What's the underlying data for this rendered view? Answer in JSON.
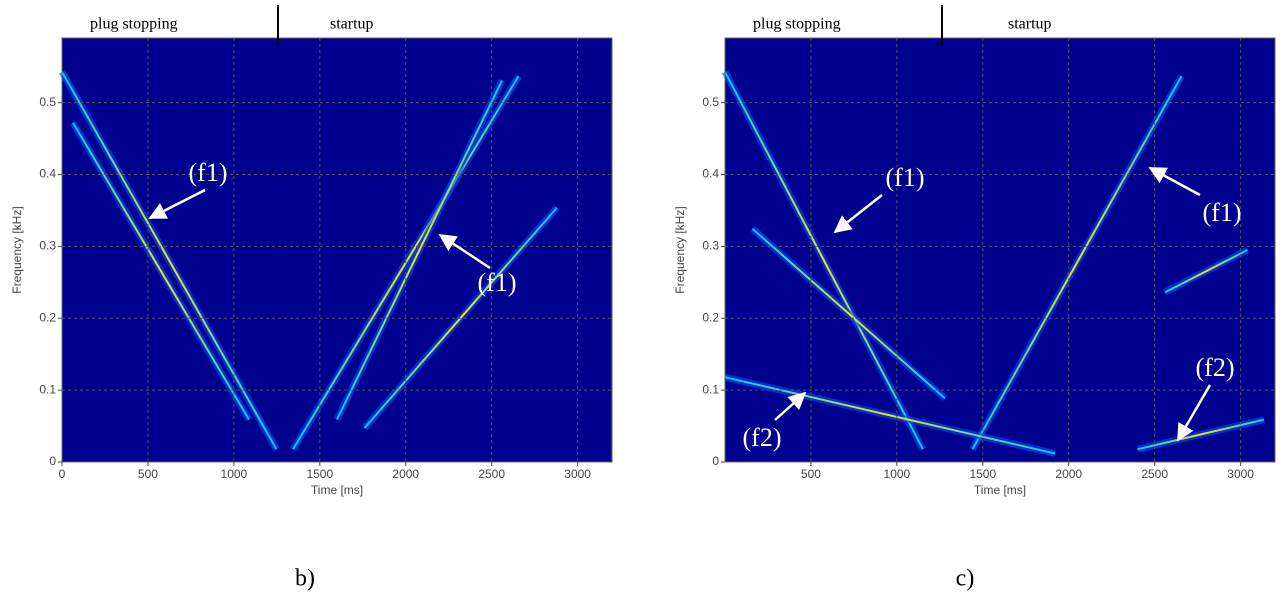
{
  "chart_data": [
    {
      "type": "spectrogram",
      "xlabel": "Time [ms]",
      "ylabel": "Frequency [kHz]",
      "xlim": [
        0,
        3200
      ],
      "ylim": [
        0,
        0.59
      ],
      "xticks": [
        0,
        500,
        1000,
        1500,
        2000,
        2500,
        3000
      ],
      "yticks": [
        0,
        0.1,
        0.2,
        0.3,
        0.4,
        0.5
      ],
      "grid": true,
      "phases": [
        "plug stopping",
        "startup"
      ],
      "annotations": [
        "(f1)",
        "(f1)"
      ],
      "caption": "b)"
    },
    {
      "type": "spectrogram",
      "xlabel": "Time [ms]",
      "ylabel": "Frequency [kHz]",
      "xlim": [
        0,
        3200
      ],
      "ylim": [
        0,
        0.59
      ],
      "xticks": [
        500,
        1000,
        1500,
        2000,
        2500,
        3000
      ],
      "yticks": [
        0,
        0.1,
        0.2,
        0.3,
        0.4,
        0.5
      ],
      "grid": true,
      "phases": [
        "plug stopping",
        "startup"
      ],
      "annotations": [
        "(f1)",
        "(f1)",
        "(f2)",
        "(f2)"
      ],
      "caption": "c)"
    }
  ]
}
